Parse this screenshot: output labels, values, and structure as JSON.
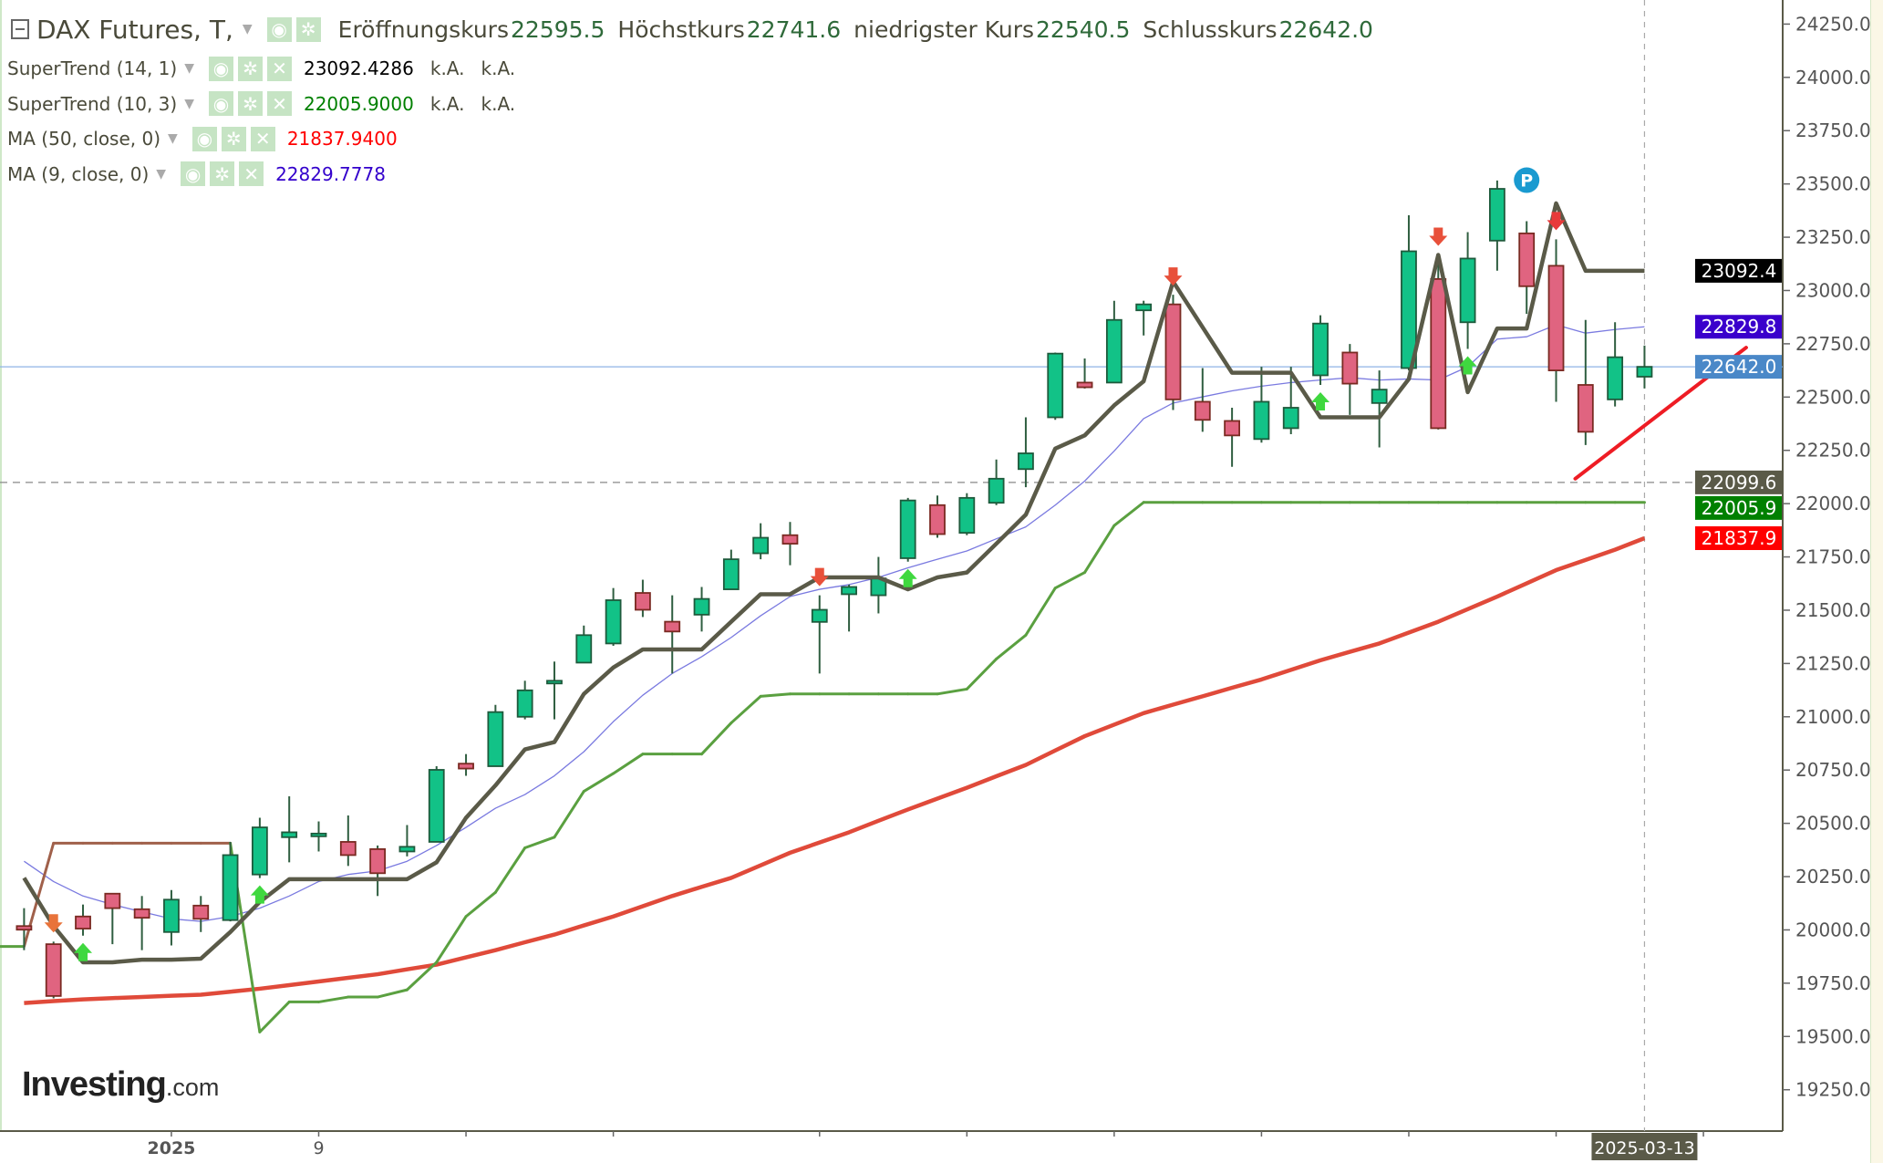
{
  "header": {
    "symbol": "DAX Futures, T,",
    "open_label": "Eröffnungskurs",
    "open": "22595.5",
    "high_label": "Höchstkurs",
    "high": "22741.6",
    "low_label": "niedrigster Kurs",
    "low": "22540.5",
    "close_label": "Schlusskurs",
    "close": "22642.0"
  },
  "indicators": [
    {
      "name": "SuperTrend (14, 1)",
      "value": "23092.4286",
      "extra1": "k.A.",
      "extra2": "k.A.",
      "color": "#000000"
    },
    {
      "name": "SuperTrend (10, 3)",
      "value": "22005.9000",
      "extra1": "k.A.",
      "extra2": "k.A.",
      "color": "#008000"
    },
    {
      "name": "MA (50, close, 0)",
      "value": "21837.9400",
      "color": "#ff0000"
    },
    {
      "name": "MA (9, close, 0)",
      "value": "22829.7778",
      "color": "#3300cc"
    }
  ],
  "logo": {
    "main": "Investing",
    "suffix": ".com"
  },
  "chart_data": {
    "type": "candlestick",
    "ylim": [
      19125,
      24300
    ],
    "y_ticks": [
      "24250.0",
      "24000.0",
      "23750.0",
      "23500.0",
      "23250.0",
      "23000.0",
      "22750.0",
      "22500.0",
      "22250.0",
      "22000.0",
      "21750.0",
      "21500.0",
      "21250.0",
      "21000.0",
      "20750.0",
      "20500.0",
      "20250.0",
      "20000.0",
      "19750.0",
      "19500.0",
      "19250.0"
    ],
    "x_labels": [
      "2025",
      "9",
      "2025-03-13"
    ],
    "candles_ohlc": [
      [
        20018,
        20102,
        19905,
        20001
      ],
      [
        19933,
        19945,
        19679,
        19690
      ],
      [
        20063,
        20119,
        19973,
        20006
      ],
      [
        20170,
        20170,
        19933,
        20102
      ],
      [
        20097,
        20159,
        19905,
        20057
      ],
      [
        19990,
        20187,
        19927,
        20142
      ],
      [
        20114,
        20159,
        19990,
        20052
      ],
      [
        20046,
        20413,
        20040,
        20351
      ],
      [
        20260,
        20526,
        20243,
        20481
      ],
      [
        20435,
        20627,
        20317,
        20458
      ],
      [
        20452,
        20509,
        20368,
        20452
      ],
      [
        20413,
        20537,
        20300,
        20351
      ],
      [
        20379,
        20396,
        20159,
        20266
      ],
      [
        20368,
        20492,
        20345,
        20390
      ],
      [
        20413,
        20768,
        20413,
        20751
      ],
      [
        20780,
        20825,
        20723,
        20757
      ],
      [
        20768,
        21056,
        20768,
        21022
      ],
      [
        21000,
        21169,
        20988,
        21124
      ],
      [
        21158,
        21259,
        20988,
        21169
      ],
      [
        21254,
        21428,
        21254,
        21383
      ],
      [
        21344,
        21604,
        21333,
        21547
      ],
      [
        21581,
        21643,
        21468,
        21502
      ],
      [
        21446,
        21570,
        21203,
        21400
      ],
      [
        21479,
        21609,
        21400,
        21553
      ],
      [
        21598,
        21784,
        21598,
        21739
      ],
      [
        21767,
        21908,
        21739,
        21840
      ],
      [
        21852,
        21914,
        21711,
        21812
      ],
      [
        21445,
        21570,
        21203,
        21502
      ],
      [
        21575,
        21620,
        21400,
        21609
      ],
      [
        21570,
        21750,
        21485,
        21649
      ],
      [
        21744,
        22027,
        21728,
        22015
      ],
      [
        21993,
        22038,
        21840,
        21857
      ],
      [
        21863,
        22049,
        21852,
        22027
      ],
      [
        22004,
        22207,
        21993,
        22117
      ],
      [
        22162,
        22405,
        22077,
        22236
      ],
      [
        22405,
        22709,
        22393,
        22704
      ],
      [
        22568,
        22681,
        22540,
        22546
      ],
      [
        22568,
        22952,
        22568,
        22862
      ],
      [
        22907,
        22952,
        22789,
        22935
      ],
      [
        22935,
        22980,
        22439,
        22489
      ],
      [
        22478,
        22636,
        22337,
        22393
      ],
      [
        22388,
        22450,
        22173,
        22320
      ],
      [
        22303,
        22642,
        22286,
        22478
      ],
      [
        22354,
        22642,
        22326,
        22450
      ],
      [
        22602,
        22884,
        22557,
        22845
      ],
      [
        22709,
        22749,
        22416,
        22563
      ],
      [
        22472,
        22625,
        22264,
        22535
      ],
      [
        22636,
        23353,
        22625,
        23184
      ],
      [
        23054,
        23167,
        22348,
        22354
      ],
      [
        22851,
        23274,
        22726,
        23150
      ],
      [
        23234,
        23516,
        23093,
        23477
      ],
      [
        23268,
        23325,
        22890,
        23020
      ],
      [
        23116,
        23240,
        22478,
        22625
      ],
      [
        22557,
        22862,
        22275,
        22337
      ],
      [
        22489,
        22851,
        22456,
        22687
      ],
      [
        22595.5,
        22741.6,
        22540.5,
        22642.0
      ]
    ],
    "series": [
      {
        "name": "SuperTrend (14, 1)",
        "color": "#5a5a48",
        "values": [
          20244,
          20018,
          19848,
          19848,
          19860,
          19860,
          19865,
          19990,
          20131,
          20238,
          20238,
          20238,
          20238,
          20238,
          20317,
          20526,
          20678,
          20847,
          20881,
          21107,
          21231,
          21316,
          21316,
          21316,
          21446,
          21575,
          21575,
          21654,
          21654,
          21654,
          21598,
          21654,
          21677,
          21812,
          21948,
          22258,
          22320,
          22461,
          22574,
          23042,
          22828,
          22614,
          22614,
          22614,
          22405,
          22405,
          22405,
          22585,
          23167,
          22523,
          22822,
          22822,
          23409,
          23092.43,
          23092.43,
          23092.43
        ]
      },
      {
        "name": "SuperTrend (10, 3)",
        "color": "#5aa040",
        "down_color": "#a0604a",
        "values": [
          19922,
          20407,
          20407,
          20407,
          20407,
          20407,
          20407,
          20407,
          19521,
          19662,
          19662,
          19685,
          19685,
          19719,
          19848,
          20063,
          20176,
          20385,
          20435,
          20650,
          20734,
          20825,
          20825,
          20825,
          20971,
          21096,
          21107,
          21107,
          21107,
          21107,
          21107,
          21107,
          21130,
          21271,
          21383,
          21604,
          21677,
          21897,
          22005.9,
          22005.9,
          22005.9,
          22005.9,
          22005.9,
          22005.9,
          22005.9,
          22005.9,
          22005.9,
          22005.9,
          22005.9,
          22005.9,
          22005.9,
          22005.9,
          22005.9,
          22005.9,
          22005.9,
          22005.9
        ],
        "direction": [
          "up",
          "down",
          "down",
          "down",
          "down",
          "down",
          "down",
          "down",
          "up",
          "up",
          "up",
          "up",
          "up",
          "up",
          "up",
          "up",
          "up",
          "up",
          "up",
          "up",
          "up",
          "up",
          "up",
          "up",
          "up",
          "up",
          "up",
          "up",
          "up",
          "up",
          "up",
          "up",
          "up",
          "up",
          "up",
          "up",
          "up",
          "up",
          "up",
          "up",
          "up",
          "up",
          "up",
          "up",
          "up",
          "up",
          "up",
          "up",
          "up",
          "up",
          "up",
          "up",
          "up",
          "up",
          "up",
          "up"
        ]
      },
      {
        "name": "MA (50, close, 0)",
        "color": "#e04a3a",
        "values": [
          19657,
          19666,
          19674,
          19680,
          19685,
          19691,
          19696,
          19710,
          19724,
          19741,
          19758,
          19775,
          19792,
          19815,
          19837,
          19871,
          19905,
          19942,
          19978,
          20021,
          20063,
          20111,
          20159,
          20202,
          20244,
          20303,
          20362,
          20410,
          20458,
          20512,
          20565,
          20616,
          20667,
          20721,
          20774,
          20842,
          20909,
          20963,
          21017,
          21057,
          21096,
          21136,
          21175,
          21220,
          21265,
          21305,
          21344,
          21395,
          21446,
          21505,
          21564,
          21626,
          21688,
          21736,
          21784,
          21837.94
        ]
      },
      {
        "name": "MA (9, close, 0)",
        "color": "#7a7ae0",
        "values": [
          20322,
          20227,
          20159,
          20119,
          20085,
          20052,
          20040,
          20063,
          20102,
          20159,
          20227,
          20260,
          20277,
          20322,
          20396,
          20481,
          20571,
          20635,
          20723,
          20836,
          20977,
          21101,
          21203,
          21282,
          21372,
          21474,
          21564,
          21598,
          21620,
          21654,
          21699,
          21739,
          21778,
          21835,
          21891,
          21993,
          22106,
          22247,
          22399,
          22472,
          22501,
          22529,
          22551,
          22568,
          22580,
          22591,
          22580,
          22585,
          22580,
          22642,
          22772,
          22783,
          22839,
          22800,
          22817,
          22829.78
        ]
      }
    ],
    "signals": [
      {
        "bar": 1,
        "type": "sell",
        "color": "#e8733a"
      },
      {
        "bar": 2,
        "type": "buy",
        "color": "#3fd83f"
      },
      {
        "bar": 8,
        "type": "buy",
        "color": "#3fd83f"
      },
      {
        "bar": 27,
        "type": "sell",
        "color": "#e8503a"
      },
      {
        "bar": 30,
        "type": "buy",
        "color": "#3fd83f"
      },
      {
        "bar": 39,
        "type": "sell",
        "color": "#e8503a"
      },
      {
        "bar": 44,
        "type": "buy",
        "color": "#3fd83f"
      },
      {
        "bar": 48,
        "type": "sell",
        "color": "#e8503a"
      },
      {
        "bar": 49,
        "type": "buy",
        "color": "#3fd83f"
      },
      {
        "bar": 52,
        "type": "sell",
        "color": "#e83a3a"
      }
    ],
    "marker_badge": {
      "bar": 51,
      "text": "P",
      "color": "#1a9ad0"
    },
    "price_labels": [
      {
        "text": "23092.4",
        "price": 23092.4,
        "bg": "#000000"
      },
      {
        "text": "22829.8",
        "price": 22829.8,
        "bg": "#3a00cc"
      },
      {
        "text": "22642.0",
        "price": 22642.0,
        "bg": "#4a88c8"
      },
      {
        "text": "22099.6",
        "price": 22099.6,
        "bg": "#5a5a48"
      },
      {
        "text": "22005.9",
        "price": 22005.9,
        "bg": "#008000"
      },
      {
        "text": "21837.9",
        "price": 21837.9,
        "bg": "#ff0000"
      }
    ],
    "current_price_line": 22642.0,
    "dashed_level": 22099.6,
    "trendline": {
      "from_price": 22117,
      "to_price": 22732,
      "color": "#ee1c24"
    },
    "candle_colors": {
      "up": "#12c287",
      "up_border": "#1e5a3c",
      "down": "#e06480",
      "down_border": "#7a2a22",
      "wick": "#2f5e40"
    }
  }
}
